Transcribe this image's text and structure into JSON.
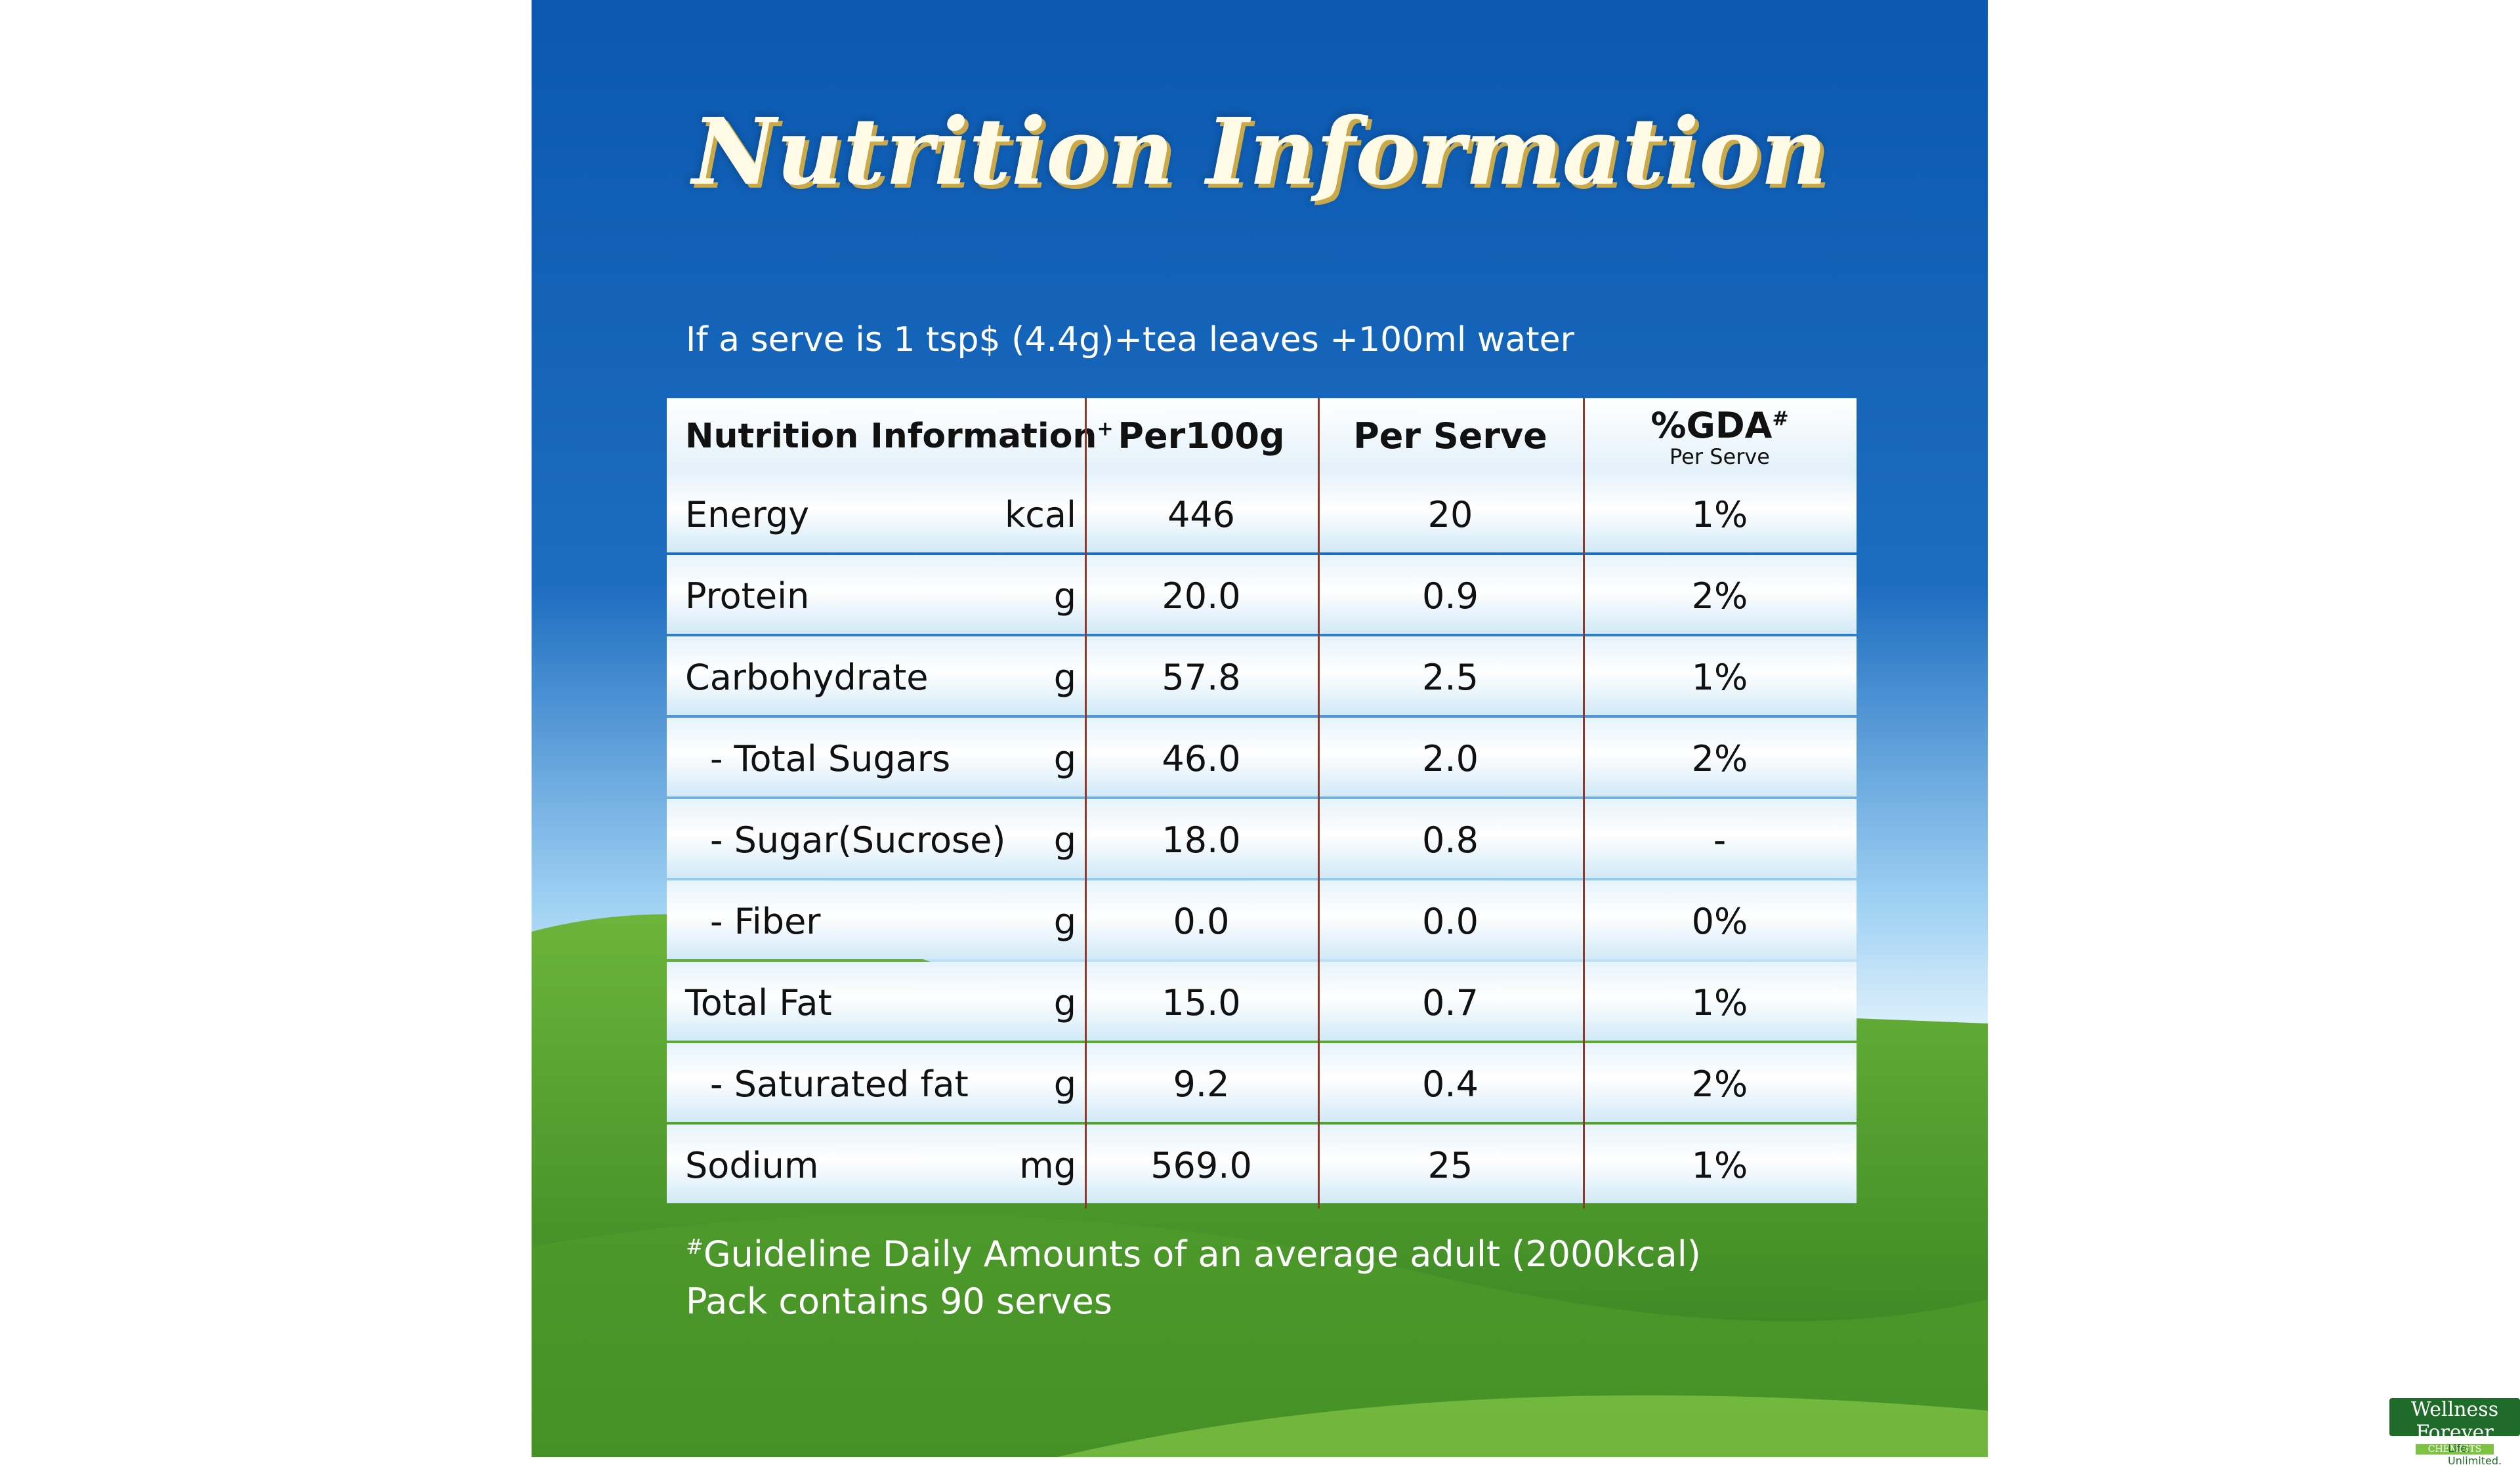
{
  "header": {
    "title": "Nutrition Information",
    "subtitle": "If a serve is 1 tsp$ (4.4g)+tea leaves +100ml water"
  },
  "table": {
    "columns": [
      {
        "label": "Nutrition Information",
        "sup": "+"
      },
      {
        "label": "Per100g"
      },
      {
        "label": "Per Serve"
      },
      {
        "label": "%GDA",
        "sup": "#",
        "sub": "Per Serve"
      }
    ],
    "rows": [
      [
        "Energy",
        "kcal",
        "446",
        "20",
        "1%"
      ],
      [
        "Protein",
        "g",
        "20.0",
        "0.9",
        "2%"
      ],
      [
        "Carbohydrate",
        "g",
        "57.8",
        "2.5",
        "1%"
      ],
      [
        "- Total Sugars",
        "g",
        "46.0",
        "2.0",
        "2%"
      ],
      [
        "- Sugar(Sucrose)",
        "g",
        "18.0",
        "0.8",
        "-"
      ],
      [
        "- Fiber",
        "g",
        "0.0",
        "0.0",
        "0%"
      ],
      [
        "Total Fat",
        "g",
        "15.0",
        "0.7",
        "1%"
      ],
      [
        "- Saturated fat",
        "g",
        "9.2",
        "0.4",
        "2%"
      ],
      [
        "Sodium",
        "mg",
        "569.0",
        "25",
        "1%"
      ]
    ]
  },
  "footer": {
    "note_mark": "#",
    "note": "Guideline Daily Amounts of an average adult (2000kcal)",
    "serves": "Pack contains 90 serves"
  },
  "logo": {
    "name": "Wellness Forever",
    "tag": "CHEMISTS",
    "slogan": "Life. Unlimited."
  }
}
